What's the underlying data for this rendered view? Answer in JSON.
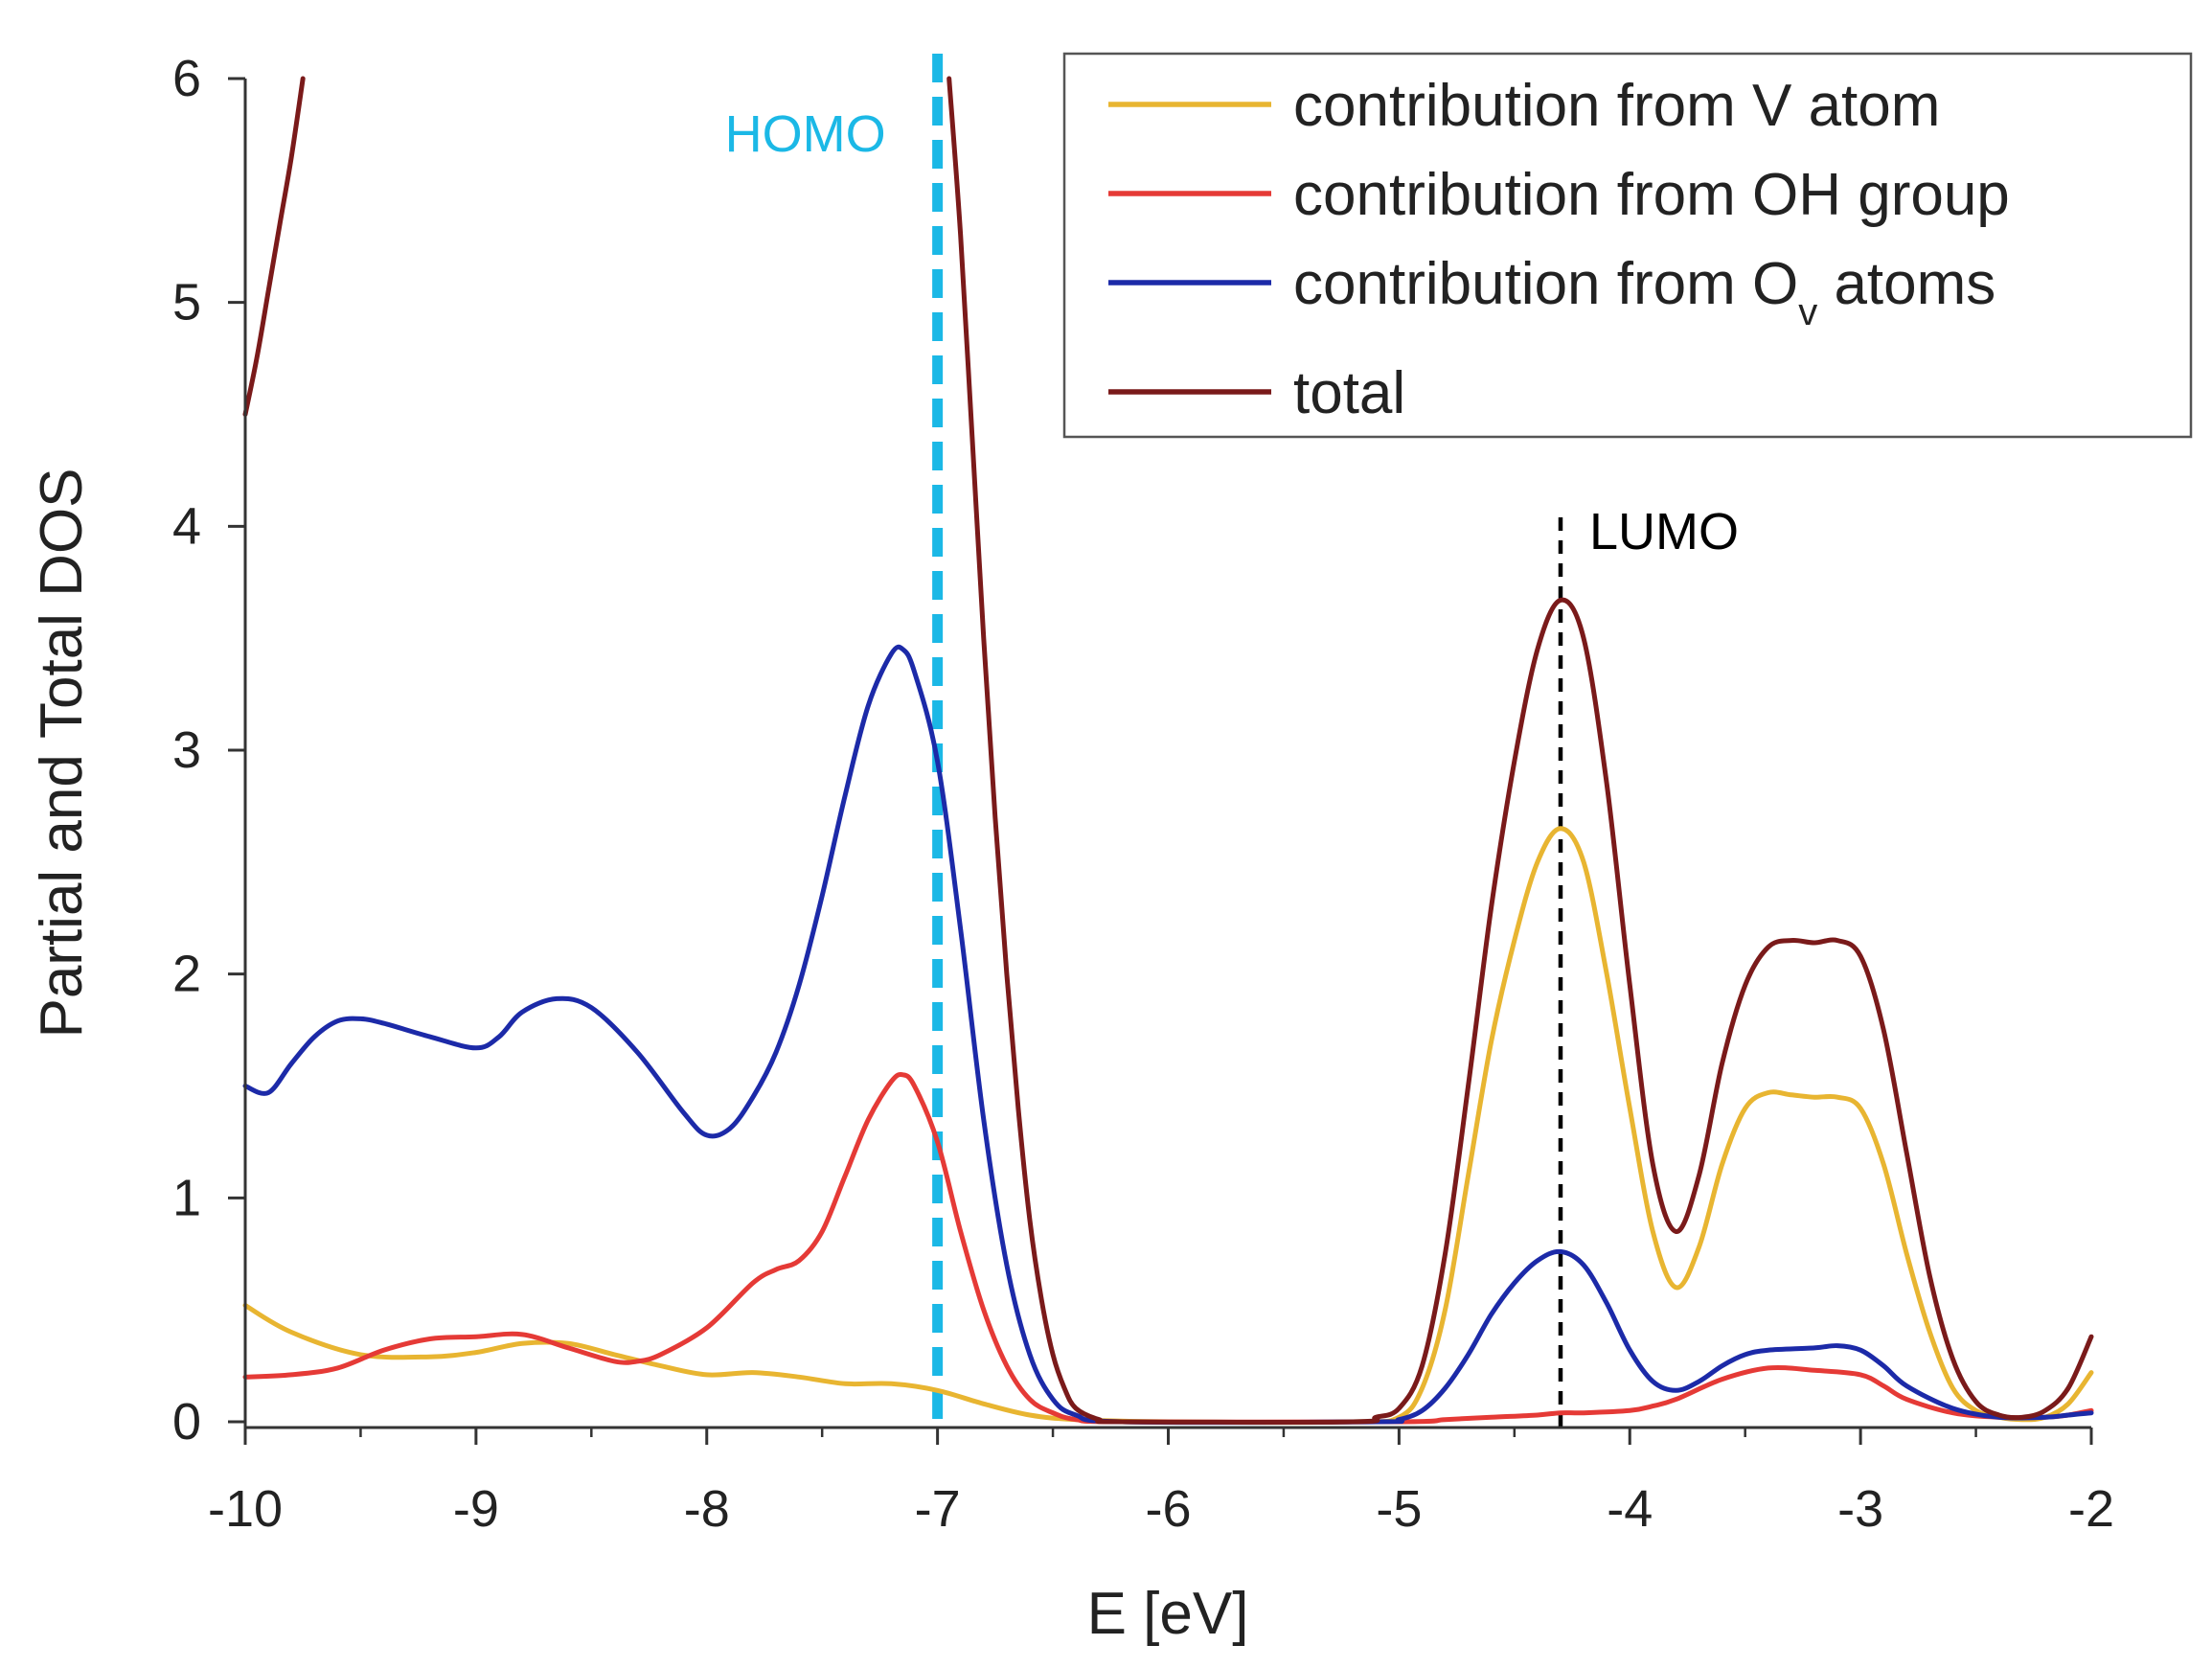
{
  "chart_data": {
    "type": "line",
    "title": "",
    "xlabel": "E [eV]",
    "ylabel": "Partial and Total DOS",
    "xlim": [
      -10,
      -2
    ],
    "ylim": [
      0,
      6
    ],
    "xticks": [
      -10,
      -9,
      -8,
      -7,
      -6,
      -5,
      -4,
      -3,
      -2
    ],
    "xtick_labels": [
      "-10",
      "-9",
      "-8",
      "-7",
      "-6",
      "-5",
      "-4",
      "-3",
      "-2"
    ],
    "yticks": [
      0,
      1,
      2,
      3,
      4,
      5,
      6
    ],
    "ytick_labels": [
      "0",
      "1",
      "2",
      "3",
      "4",
      "5",
      "6"
    ],
    "grid": false,
    "legend_position": "top-right",
    "series": [
      {
        "name": "contribution from V atom",
        "color": "#e8b531",
        "points": [
          [
            -10,
            0.52
          ],
          [
            -9.8,
            0.4
          ],
          [
            -9.5,
            0.3
          ],
          [
            -9.2,
            0.29
          ],
          [
            -9,
            0.31
          ],
          [
            -8.8,
            0.35
          ],
          [
            -8.6,
            0.35
          ],
          [
            -8.4,
            0.3
          ],
          [
            -8.2,
            0.25
          ],
          [
            -8,
            0.21
          ],
          [
            -7.8,
            0.22
          ],
          [
            -7.6,
            0.2
          ],
          [
            -7.4,
            0.17
          ],
          [
            -7.2,
            0.17
          ],
          [
            -7,
            0.14
          ],
          [
            -6.8,
            0.08
          ],
          [
            -6.6,
            0.03
          ],
          [
            -6.4,
            0.01
          ],
          [
            -6,
            0
          ],
          [
            -5.2,
            0
          ],
          [
            -5,
            0.02
          ],
          [
            -4.9,
            0.15
          ],
          [
            -4.8,
            0.5
          ],
          [
            -4.7,
            1.1
          ],
          [
            -4.6,
            1.7
          ],
          [
            -4.5,
            2.15
          ],
          [
            -4.4,
            2.5
          ],
          [
            -4.3,
            2.65
          ],
          [
            -4.2,
            2.5
          ],
          [
            -4.1,
            2.0
          ],
          [
            -4,
            1.4
          ],
          [
            -3.9,
            0.85
          ],
          [
            -3.8,
            0.6
          ],
          [
            -3.7,
            0.78
          ],
          [
            -3.6,
            1.15
          ],
          [
            -3.5,
            1.4
          ],
          [
            -3.4,
            1.47
          ],
          [
            -3.3,
            1.46
          ],
          [
            -3.2,
            1.45
          ],
          [
            -3.1,
            1.45
          ],
          [
            -3,
            1.4
          ],
          [
            -2.9,
            1.15
          ],
          [
            -2.8,
            0.75
          ],
          [
            -2.7,
            0.4
          ],
          [
            -2.6,
            0.15
          ],
          [
            -2.5,
            0.05
          ],
          [
            -2.4,
            0.02
          ],
          [
            -2.3,
            0.01
          ],
          [
            -2.2,
            0.02
          ],
          [
            -2.1,
            0.08
          ],
          [
            -2,
            0.22
          ]
        ]
      },
      {
        "name": "contribution from OH group",
        "color": "#e53a36",
        "points": [
          [
            -10,
            0.2
          ],
          [
            -9.8,
            0.21
          ],
          [
            -9.6,
            0.24
          ],
          [
            -9.4,
            0.32
          ],
          [
            -9.2,
            0.37
          ],
          [
            -9,
            0.38
          ],
          [
            -8.8,
            0.39
          ],
          [
            -8.6,
            0.33
          ],
          [
            -8.4,
            0.27
          ],
          [
            -8.3,
            0.27
          ],
          [
            -8.2,
            0.3
          ],
          [
            -8,
            0.42
          ],
          [
            -7.8,
            0.62
          ],
          [
            -7.7,
            0.68
          ],
          [
            -7.6,
            0.72
          ],
          [
            -7.5,
            0.85
          ],
          [
            -7.4,
            1.1
          ],
          [
            -7.3,
            1.35
          ],
          [
            -7.2,
            1.52
          ],
          [
            -7.15,
            1.55
          ],
          [
            -7.1,
            1.5
          ],
          [
            -7,
            1.25
          ],
          [
            -6.9,
            0.85
          ],
          [
            -6.8,
            0.5
          ],
          [
            -6.7,
            0.25
          ],
          [
            -6.6,
            0.1
          ],
          [
            -6.5,
            0.04
          ],
          [
            -6.4,
            0.01
          ],
          [
            -6.2,
            0
          ],
          [
            -5,
            0
          ],
          [
            -4.8,
            0.01
          ],
          [
            -4.6,
            0.02
          ],
          [
            -4.4,
            0.03
          ],
          [
            -4.3,
            0.04
          ],
          [
            -4.2,
            0.04
          ],
          [
            -4,
            0.05
          ],
          [
            -3.9,
            0.07
          ],
          [
            -3.8,
            0.1
          ],
          [
            -3.6,
            0.19
          ],
          [
            -3.4,
            0.24
          ],
          [
            -3.2,
            0.23
          ],
          [
            -3,
            0.21
          ],
          [
            -2.9,
            0.16
          ],
          [
            -2.8,
            0.1
          ],
          [
            -2.6,
            0.04
          ],
          [
            -2.4,
            0.02
          ],
          [
            -2.2,
            0.02
          ],
          [
            -2.1,
            0.03
          ],
          [
            -2,
            0.05
          ]
        ]
      },
      {
        "name": "contribution from O_v atoms",
        "color": "#1c2aa8",
        "points": [
          [
            -10,
            1.5
          ],
          [
            -9.9,
            1.47
          ],
          [
            -9.8,
            1.6
          ],
          [
            -9.7,
            1.72
          ],
          [
            -9.6,
            1.79
          ],
          [
            -9.5,
            1.8
          ],
          [
            -9.4,
            1.78
          ],
          [
            -9.2,
            1.72
          ],
          [
            -9,
            1.67
          ],
          [
            -8.9,
            1.72
          ],
          [
            -8.8,
            1.83
          ],
          [
            -8.65,
            1.89
          ],
          [
            -8.5,
            1.85
          ],
          [
            -8.3,
            1.65
          ],
          [
            -8.1,
            1.38
          ],
          [
            -8,
            1.28
          ],
          [
            -7.9,
            1.31
          ],
          [
            -7.8,
            1.45
          ],
          [
            -7.7,
            1.65
          ],
          [
            -7.6,
            1.95
          ],
          [
            -7.5,
            2.35
          ],
          [
            -7.4,
            2.8
          ],
          [
            -7.3,
            3.2
          ],
          [
            -7.2,
            3.43
          ],
          [
            -7.15,
            3.45
          ],
          [
            -7.1,
            3.35
          ],
          [
            -7,
            2.95
          ],
          [
            -6.9,
            2.2
          ],
          [
            -6.8,
            1.35
          ],
          [
            -6.7,
            0.7
          ],
          [
            -6.6,
            0.3
          ],
          [
            -6.5,
            0.1
          ],
          [
            -6.4,
            0.03
          ],
          [
            -6.2,
            0
          ],
          [
            -5.1,
            0
          ],
          [
            -5,
            0.01
          ],
          [
            -4.9,
            0.05
          ],
          [
            -4.8,
            0.15
          ],
          [
            -4.7,
            0.3
          ],
          [
            -4.6,
            0.48
          ],
          [
            -4.5,
            0.62
          ],
          [
            -4.4,
            0.72
          ],
          [
            -4.3,
            0.76
          ],
          [
            -4.2,
            0.7
          ],
          [
            -4.1,
            0.53
          ],
          [
            -4,
            0.32
          ],
          [
            -3.9,
            0.18
          ],
          [
            -3.8,
            0.14
          ],
          [
            -3.7,
            0.18
          ],
          [
            -3.6,
            0.25
          ],
          [
            -3.5,
            0.3
          ],
          [
            -3.4,
            0.32
          ],
          [
            -3.2,
            0.33
          ],
          [
            -3.1,
            0.34
          ],
          [
            -3,
            0.32
          ],
          [
            -2.9,
            0.25
          ],
          [
            -2.8,
            0.16
          ],
          [
            -2.6,
            0.06
          ],
          [
            -2.4,
            0.02
          ],
          [
            -2.2,
            0.02
          ],
          [
            -2.1,
            0.03
          ],
          [
            -2,
            0.04
          ]
        ]
      },
      {
        "name": "total",
        "color": "#7a1a1a",
        "segments": [
          [
            [
              -10,
              4.5
            ],
            [
              -9.95,
              4.75
            ],
            [
              -9.9,
              5.05
            ],
            [
              -9.85,
              5.35
            ],
            [
              -9.8,
              5.65
            ],
            [
              -9.75,
              6.0
            ]
          ],
          [
            [
              -6.95,
              6.0
            ],
            [
              -6.9,
              5.3
            ],
            [
              -6.85,
              4.4
            ],
            [
              -6.8,
              3.5
            ],
            [
              -6.75,
              2.7
            ],
            [
              -6.7,
              2.0
            ],
            [
              -6.65,
              1.4
            ],
            [
              -6.6,
              0.9
            ],
            [
              -6.55,
              0.55
            ],
            [
              -6.5,
              0.3
            ],
            [
              -6.45,
              0.15
            ],
            [
              -6.4,
              0.06
            ],
            [
              -6.3,
              0.01
            ],
            [
              -6.2,
              0
            ],
            [
              -5.2,
              0
            ],
            [
              -5.1,
              0.02
            ],
            [
              -5,
              0.06
            ],
            [
              -4.9,
              0.25
            ],
            [
              -4.8,
              0.75
            ],
            [
              -4.7,
              1.5
            ],
            [
              -4.6,
              2.3
            ],
            [
              -4.5,
              2.95
            ],
            [
              -4.4,
              3.45
            ],
            [
              -4.3,
              3.67
            ],
            [
              -4.2,
              3.5
            ],
            [
              -4.1,
              2.85
            ],
            [
              -4,
              1.95
            ],
            [
              -3.9,
              1.15
            ],
            [
              -3.8,
              0.85
            ],
            [
              -3.7,
              1.1
            ],
            [
              -3.6,
              1.6
            ],
            [
              -3.5,
              1.95
            ],
            [
              -3.4,
              2.12
            ],
            [
              -3.3,
              2.15
            ],
            [
              -3.2,
              2.14
            ],
            [
              -3.1,
              2.15
            ],
            [
              -3,
              2.08
            ],
            [
              -2.9,
              1.75
            ],
            [
              -2.8,
              1.2
            ],
            [
              -2.7,
              0.65
            ],
            [
              -2.6,
              0.28
            ],
            [
              -2.5,
              0.09
            ],
            [
              -2.4,
              0.03
            ],
            [
              -2.3,
              0.02
            ],
            [
              -2.2,
              0.05
            ],
            [
              -2.1,
              0.15
            ],
            [
              -2,
              0.38
            ]
          ]
        ]
      }
    ],
    "annotations": [
      {
        "label": "HOMO",
        "x": -7.0,
        "color": "#1bb8e6",
        "style": "dashed"
      },
      {
        "label": "LUMO",
        "x": -4.3,
        "color": "#000000",
        "style": "dashed"
      }
    ]
  }
}
